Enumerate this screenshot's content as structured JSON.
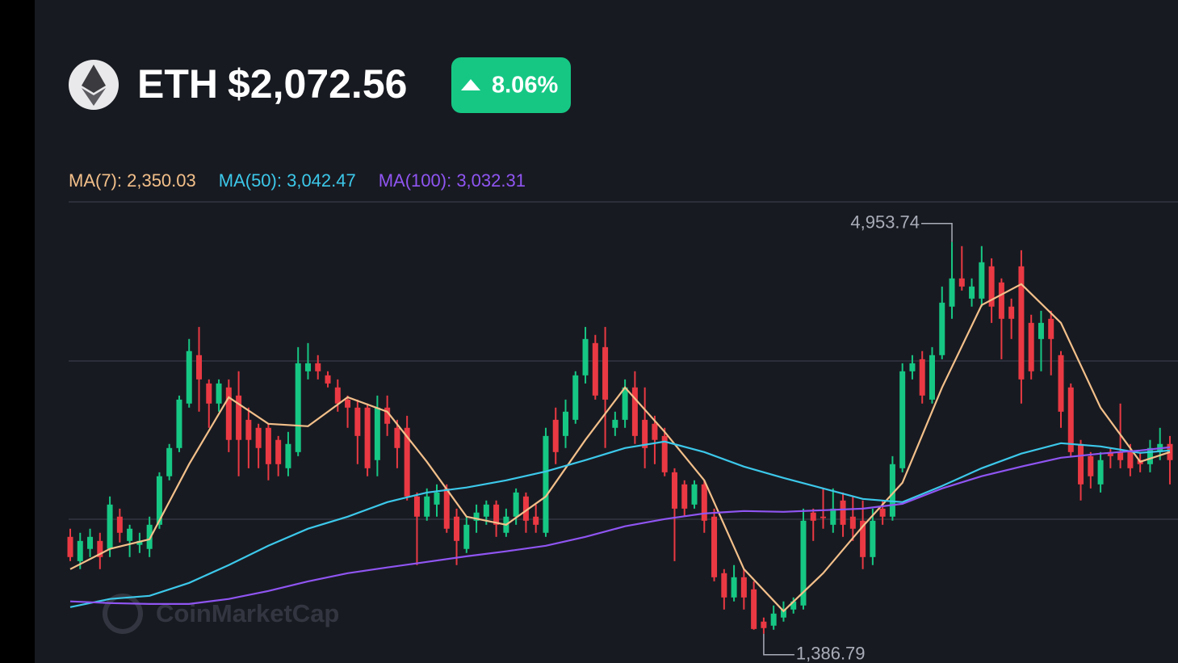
{
  "header": {
    "symbol": "ETH",
    "price": "$2,072.56",
    "change": "8.06%"
  },
  "chart_data": {
    "type": "candlestick",
    "watermark": "CoinMarketCap",
    "ylim": [
      1120,
      5320
    ],
    "up_color": "#16c784",
    "down_color": "#ea3943",
    "annotations": [
      {
        "x": 89,
        "value": 4953.74,
        "label": "4,953.74",
        "side": "high"
      },
      {
        "x": 70,
        "value": 1386.79,
        "label": "1,386.79",
        "side": "low"
      }
    ],
    "ohlc": [
      [
        2269,
        2343,
        2048,
        2085
      ],
      [
        2048,
        2306,
        1975,
        2232
      ],
      [
        2159,
        2343,
        2085,
        2269
      ],
      [
        2232,
        2306,
        1975,
        2085
      ],
      [
        2159,
        2637,
        2085,
        2563
      ],
      [
        2453,
        2526,
        2218,
        2306
      ],
      [
        2232,
        2379,
        2085,
        2343
      ],
      [
        2196,
        2306,
        2122,
        2232
      ],
      [
        2159,
        2453,
        2085,
        2379
      ],
      [
        2379,
        2857,
        2343,
        2821
      ],
      [
        2821,
        3115,
        2784,
        3078
      ],
      [
        3078,
        3556,
        3041,
        3519
      ],
      [
        3483,
        4071,
        3446,
        3961
      ],
      [
        3924,
        4181,
        3409,
        3703
      ],
      [
        3666,
        3703,
        3262,
        3483
      ],
      [
        3483,
        3703,
        3409,
        3666
      ],
      [
        3630,
        3703,
        3041,
        3152
      ],
      [
        3556,
        3777,
        2821,
        3152
      ],
      [
        3335,
        3446,
        2894,
        3152
      ],
      [
        3262,
        3299,
        2894,
        3078
      ],
      [
        3262,
        3299,
        2784,
        2931
      ],
      [
        3152,
        3188,
        2821,
        2931
      ],
      [
        2894,
        3225,
        2821,
        3115
      ],
      [
        3041,
        3997,
        3004,
        3850
      ],
      [
        3777,
        4034,
        3703,
        3850
      ],
      [
        3850,
        3924,
        3703,
        3777
      ],
      [
        3740,
        3777,
        3630,
        3666
      ],
      [
        3630,
        3703,
        3409,
        3483
      ],
      [
        3519,
        3556,
        3262,
        3446
      ],
      [
        3446,
        3519,
        2931,
        3188
      ],
      [
        3446,
        3483,
        2821,
        2894
      ],
      [
        2968,
        3556,
        2821,
        3446
      ],
      [
        3446,
        3556,
        3188,
        3299
      ],
      [
        3262,
        3335,
        2894,
        3078
      ],
      [
        3262,
        3372,
        2600,
        2637
      ],
      [
        2637,
        2673,
        2012,
        2453
      ],
      [
        2453,
        2710,
        2416,
        2637
      ],
      [
        2563,
        2747,
        2453,
        2673
      ],
      [
        2710,
        2747,
        2306,
        2343
      ],
      [
        2453,
        2526,
        2012,
        2232
      ],
      [
        2159,
        2453,
        2122,
        2379
      ],
      [
        2416,
        2563,
        2306,
        2490
      ],
      [
        2453,
        2600,
        2379,
        2563
      ],
      [
        2563,
        2600,
        2269,
        2379
      ],
      [
        2306,
        2526,
        2269,
        2453
      ],
      [
        2453,
        2710,
        2379,
        2673
      ],
      [
        2637,
        2673,
        2306,
        2416
      ],
      [
        2453,
        2563,
        2306,
        2379
      ],
      [
        2306,
        3262,
        2269,
        3188
      ],
      [
        3335,
        3446,
        2931,
        3041
      ],
      [
        3188,
        3519,
        3078,
        3409
      ],
      [
        3335,
        3777,
        3299,
        3740
      ],
      [
        3740,
        4181,
        3666,
        4071
      ],
      [
        4034,
        4108,
        3519,
        3556
      ],
      [
        3997,
        4181,
        3078,
        3519
      ],
      [
        3262,
        3409,
        3188,
        3335
      ],
      [
        3335,
        3703,
        3262,
        3630
      ],
      [
        3630,
        3777,
        3115,
        3188
      ],
      [
        3335,
        3630,
        2894,
        3078
      ],
      [
        3299,
        3372,
        2931,
        3152
      ],
      [
        3188,
        3262,
        2821,
        2857
      ],
      [
        2857,
        2894,
        2048,
        2526
      ],
      [
        2747,
        2784,
        2453,
        2526
      ],
      [
        2563,
        2784,
        2526,
        2747
      ],
      [
        2747,
        2784,
        2306,
        2416
      ],
      [
        2453,
        2526,
        1864,
        1901
      ],
      [
        1938,
        1975,
        1607,
        1717
      ],
      [
        1717,
        2012,
        1681,
        1901
      ],
      [
        1901,
        1975,
        1607,
        1717
      ],
      [
        1791,
        1864,
        1423,
        1430
      ],
      [
        1497,
        1534,
        1386.79,
        1438
      ],
      [
        1460,
        1644,
        1423,
        1570
      ],
      [
        1534,
        1681,
        1497,
        1607
      ],
      [
        1607,
        1717,
        1570,
        1681
      ],
      [
        1644,
        2526,
        1607,
        2416
      ],
      [
        2490,
        2526,
        2232,
        2416
      ],
      [
        2453,
        2710,
        2343,
        2440
      ],
      [
        2379,
        2710,
        2306,
        2526
      ],
      [
        2600,
        2673,
        2269,
        2379
      ],
      [
        2453,
        2637,
        2232,
        2343
      ],
      [
        2416,
        2600,
        1975,
        2085
      ],
      [
        2085,
        2526,
        2012,
        2416
      ],
      [
        2526,
        2600,
        2379,
        2453
      ],
      [
        2453,
        3004,
        2416,
        2931
      ],
      [
        2894,
        3850,
        2857,
        3777
      ],
      [
        3777,
        3924,
        3703,
        3850
      ],
      [
        3887,
        3961,
        3483,
        3556
      ],
      [
        3519,
        3997,
        3483,
        3924
      ],
      [
        3924,
        4549,
        3887,
        4402
      ],
      [
        4366,
        4953.74,
        4255,
        4623
      ],
      [
        4623,
        4917,
        4512,
        4549
      ],
      [
        4439,
        4623,
        4366,
        4549
      ],
      [
        4439,
        4917,
        4366,
        4770
      ],
      [
        4733,
        4806,
        4218,
        4366
      ],
      [
        4586,
        4623,
        3887,
        4255
      ],
      [
        4366,
        4439,
        4071,
        4255
      ],
      [
        4733,
        4880,
        3483,
        3703
      ],
      [
        4218,
        4292,
        3703,
        3777
      ],
      [
        4071,
        4328,
        3777,
        4218
      ],
      [
        4255,
        4328,
        3740,
        4071
      ],
      [
        3924,
        3961,
        3262,
        3409
      ],
      [
        3630,
        3666,
        3004,
        3041
      ],
      [
        3115,
        3152,
        2600,
        2747
      ],
      [
        3004,
        3041,
        2710,
        2821
      ],
      [
        2747,
        3041,
        2673,
        2968
      ],
      [
        3041,
        3078,
        2894,
        3004
      ],
      [
        3041,
        3483,
        2894,
        2968
      ],
      [
        3041,
        3115,
        2821,
        2894
      ],
      [
        2968,
        3041,
        2857,
        2931
      ],
      [
        2931,
        3152,
        2857,
        3078
      ],
      [
        3041,
        3262,
        2968,
        3115
      ],
      [
        3115,
        3188,
        2747,
        2968
      ]
    ],
    "series": [
      {
        "name": "MA(7): 2,350.03",
        "color": "#f3c08a",
        "x": [
          0,
          4,
          8,
          12,
          16,
          20,
          24,
          28,
          32,
          36,
          40,
          44,
          48,
          52,
          56,
          60,
          64,
          68,
          72,
          76,
          80,
          84,
          88,
          92,
          96,
          100,
          104,
          108,
          111
        ],
        "values": [
          1975,
          2159,
          2247,
          2931,
          3541,
          3299,
          3277,
          3541,
          3409,
          2953,
          2453,
          2379,
          2637,
          3152,
          3630,
          3225,
          2784,
          1975,
          1592,
          1938,
          2365,
          2762,
          3630,
          4380,
          4571,
          4218,
          3446,
          2953,
          3041
        ]
      },
      {
        "name": "MA(50): 3,042.47",
        "color": "#3cc8ea",
        "x": [
          0,
          4,
          8,
          12,
          16,
          20,
          24,
          28,
          32,
          36,
          40,
          44,
          48,
          52,
          56,
          60,
          64,
          68,
          72,
          76,
          80,
          84,
          88,
          92,
          96,
          100,
          104,
          108,
          111
        ],
        "values": [
          1629,
          1703,
          1732,
          1850,
          2012,
          2188,
          2343,
          2453,
          2585,
          2673,
          2718,
          2784,
          2865,
          2968,
          3078,
          3137,
          3041,
          2909,
          2806,
          2710,
          2615,
          2585,
          2732,
          2894,
          3027,
          3122,
          3093,
          3034,
          3056
        ]
      },
      {
        "name": "MA(100): 3,032.31",
        "color": "#8f55f2",
        "x": [
          0,
          4,
          8,
          12,
          16,
          20,
          24,
          28,
          32,
          36,
          40,
          44,
          48,
          52,
          56,
          60,
          64,
          68,
          72,
          76,
          80,
          84,
          88,
          92,
          96,
          100,
          104,
          108,
          111
        ],
        "values": [
          1681,
          1666,
          1658,
          1658,
          1703,
          1776,
          1864,
          1938,
          1990,
          2041,
          2092,
          2137,
          2188,
          2269,
          2365,
          2431,
          2482,
          2504,
          2497,
          2512,
          2526,
          2570,
          2710,
          2821,
          2909,
          2990,
          3027,
          3056,
          3085
        ]
      }
    ]
  }
}
